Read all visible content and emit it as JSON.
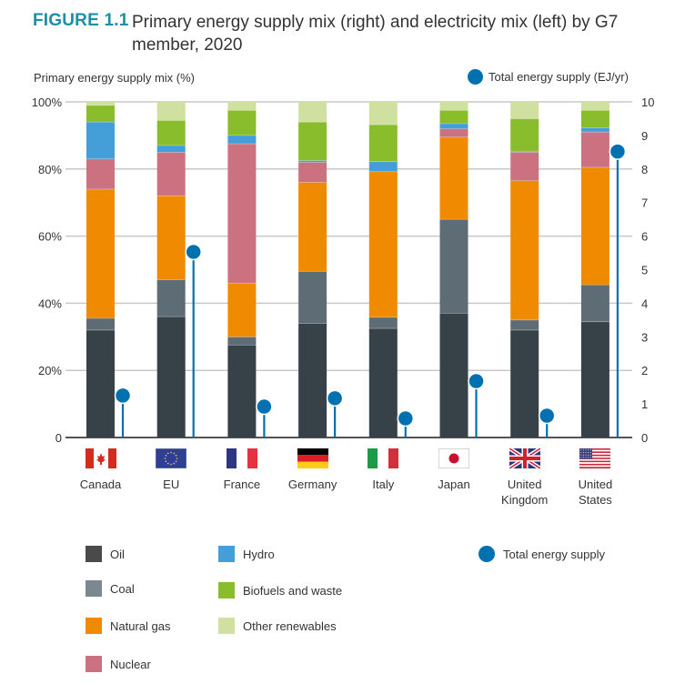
{
  "header": {
    "figure_number": "FIGURE 1.1",
    "title": "Primary energy supply mix (right) and electricity mix (left) by G7 member, 2020"
  },
  "colors": {
    "Oil": "#364148",
    "Coal": "#5d6c75",
    "Natural gas": "#f08a00",
    "Nuclear": "#cb717f",
    "Hydro": "#449fd8",
    "Biofuels and waste": "#89bd2b",
    "Other renewables": "#cfe0a0",
    "Total energy supply": "#0071b0",
    "figure_accent": "#1a8fa5"
  },
  "legend_colors": {
    "Oil": "#4a4a4a",
    "Coal": "#7b8890"
  },
  "chart_data": {
    "type": "bar",
    "stacked": true,
    "title": "Primary energy supply mix (right) and electricity mix (left) by G7 member, 2020",
    "ylabel": "Primary energy supply mix (%)",
    "y2label": "Total energy supply (EJ/yr)",
    "ylim": [
      0,
      100
    ],
    "y2lim": [
      0,
      10
    ],
    "yticks": [
      "0",
      "20%",
      "40%",
      "60%",
      "80%",
      "100%"
    ],
    "yticks_values": [
      0,
      20,
      40,
      60,
      80,
      100
    ],
    "y2ticks": [
      "0",
      "1",
      "2",
      "3",
      "4",
      "5",
      "6",
      "7",
      "8",
      "9",
      "10"
    ],
    "y2ticks_values": [
      0,
      1,
      2,
      3,
      4,
      5,
      6,
      7,
      8,
      9,
      10
    ],
    "grid": true,
    "legend_position": "bottom",
    "categories": [
      "Canada",
      "EU",
      "France",
      "Germany",
      "Italy",
      "Japan",
      "United Kingdom",
      "United States"
    ],
    "category_labels": [
      [
        "Canada"
      ],
      [
        "EU"
      ],
      [
        "France"
      ],
      [
        "Germany"
      ],
      [
        "Italy"
      ],
      [
        "Japan"
      ],
      [
        "United",
        "Kingdom"
      ],
      [
        "United",
        "States"
      ]
    ],
    "series": [
      {
        "name": "Oil",
        "values": [
          32,
          36,
          27.5,
          34,
          32.5,
          37,
          32,
          34.5
        ]
      },
      {
        "name": "Coal",
        "values": [
          3.5,
          11,
          2.5,
          15.5,
          3.3,
          28,
          3,
          11
        ]
      },
      {
        "name": "Natural gas",
        "values": [
          38.5,
          25,
          16,
          26.5,
          43.4,
          24.5,
          41.5,
          35
        ]
      },
      {
        "name": "Nuclear",
        "values": [
          9,
          13,
          41.5,
          6,
          0,
          2.5,
          8.5,
          10.5
        ]
      },
      {
        "name": "Hydro",
        "values": [
          11,
          2,
          2.5,
          0.5,
          3,
          1.5,
          0.3,
          1.3
        ]
      },
      {
        "name": "Biofuels and waste",
        "values": [
          5,
          7.5,
          7.5,
          11.5,
          11,
          4,
          9.7,
          5.2
        ]
      },
      {
        "name": "Other renewables",
        "values": [
          1,
          5.5,
          2.5,
          6,
          6.8,
          2.5,
          5,
          2.5
        ]
      }
    ],
    "secondary_series": {
      "name": "Total energy supply",
      "type": "lollipop",
      "axis": "right",
      "values": [
        1.25,
        5.53,
        0.92,
        1.17,
        0.57,
        1.68,
        0.65,
        8.52
      ]
    }
  },
  "flags": [
    "canada-flag-icon",
    "eu-flag-icon",
    "france-flag-icon",
    "germany-flag-icon",
    "italy-flag-icon",
    "japan-flag-icon",
    "uk-flag-icon",
    "us-flag-icon"
  ],
  "legend": {
    "items": [
      "Oil",
      "Coal",
      "Natural gas",
      "Nuclear",
      "Hydro",
      "Biofuels and waste",
      "Other renewables"
    ],
    "tes_label": "Total energy supply"
  },
  "axis_titles": {
    "left": "Primary energy supply mix (%)",
    "right": "Total energy supply (EJ/yr)"
  }
}
